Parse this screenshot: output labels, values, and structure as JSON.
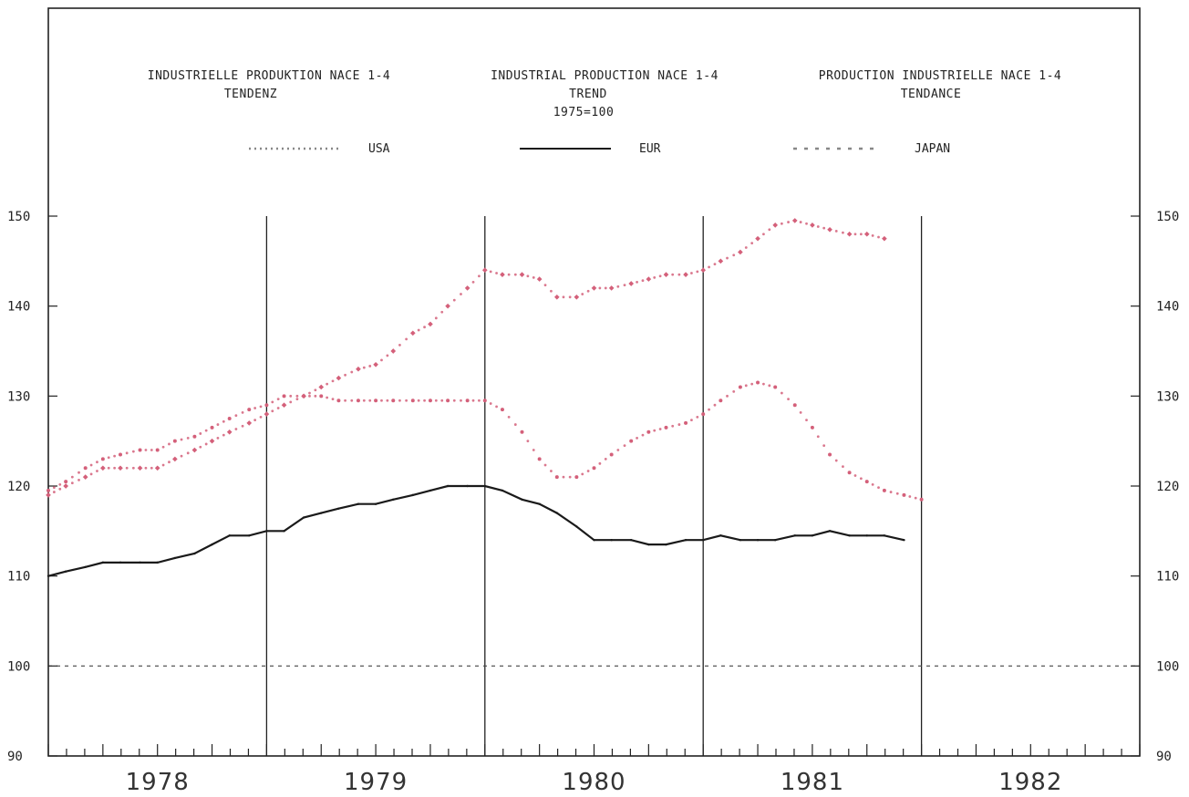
{
  "chart_data": {
    "type": "line",
    "titles": {
      "de": [
        "INDUSTRIELLE PRODUKTION NACE 1-4",
        "TENDENZ"
      ],
      "en": [
        "INDUSTRIAL PRODUCTION NACE 1-4",
        "TREND",
        "1975=100"
      ],
      "fr": [
        "PRODUCTION INDUSTRIELLE NACE 1-4",
        "TENDANCE"
      ]
    },
    "x_tick_labels": [
      "1978",
      "1979",
      "1980",
      "1981",
      "1982"
    ],
    "xlim": [
      1978.0,
      1983.0
    ],
    "ylim": [
      90,
      150
    ],
    "y_ticks": [
      90,
      100,
      110,
      120,
      130,
      140,
      150
    ],
    "grid": false,
    "legend_position": "top",
    "reference_line": 100,
    "series": [
      {
        "name": "USA",
        "style": "starred",
        "color": "#d4607a",
        "points": [
          [
            1978.0,
            119.0
          ],
          [
            1978.08,
            120.0
          ],
          [
            1978.17,
            121.0
          ],
          [
            1978.25,
            122.0
          ],
          [
            1978.33,
            122.0
          ],
          [
            1978.42,
            122.0
          ],
          [
            1978.5,
            122.0
          ],
          [
            1978.58,
            123.0
          ],
          [
            1978.67,
            124.0
          ],
          [
            1978.75,
            125.0
          ],
          [
            1978.83,
            126.0
          ],
          [
            1978.92,
            127.0
          ],
          [
            1979.0,
            128.0
          ],
          [
            1979.08,
            129.0
          ],
          [
            1979.17,
            130.0
          ],
          [
            1979.25,
            131.0
          ],
          [
            1979.33,
            132.0
          ],
          [
            1979.42,
            133.0
          ],
          [
            1979.5,
            133.5
          ],
          [
            1979.58,
            135.0
          ],
          [
            1979.67,
            137.0
          ],
          [
            1979.75,
            138.0
          ],
          [
            1979.83,
            140.0
          ],
          [
            1979.92,
            142.0
          ],
          [
            1980.0,
            144.0
          ],
          [
            1980.08,
            143.5
          ],
          [
            1980.17,
            143.5
          ],
          [
            1980.25,
            143.0
          ],
          [
            1980.33,
            141.0
          ],
          [
            1980.42,
            141.0
          ],
          [
            1980.5,
            142.0
          ],
          [
            1980.58,
            142.0
          ],
          [
            1980.67,
            142.5
          ],
          [
            1980.75,
            143.0
          ],
          [
            1980.83,
            143.5
          ],
          [
            1980.92,
            143.5
          ],
          [
            1981.0,
            144.0
          ],
          [
            1981.08,
            145.0
          ],
          [
            1981.17,
            146.0
          ],
          [
            1981.25,
            147.5
          ],
          [
            1981.33,
            149.0
          ],
          [
            1981.42,
            149.5
          ],
          [
            1981.5,
            149.0
          ],
          [
            1981.58,
            148.5
          ],
          [
            1981.67,
            148.0
          ],
          [
            1981.75,
            148.0
          ],
          [
            1981.83,
            147.5
          ]
        ]
      },
      {
        "name": "EUR",
        "style": "solid",
        "color": "#1a1a1a",
        "points": [
          [
            1978.0,
            110.0
          ],
          [
            1978.08,
            110.5
          ],
          [
            1978.17,
            111.0
          ],
          [
            1978.25,
            111.5
          ],
          [
            1978.33,
            111.5
          ],
          [
            1978.42,
            111.5
          ],
          [
            1978.5,
            111.5
          ],
          [
            1978.58,
            112.0
          ],
          [
            1978.67,
            112.5
          ],
          [
            1978.75,
            113.5
          ],
          [
            1978.83,
            114.5
          ],
          [
            1978.92,
            114.5
          ],
          [
            1979.0,
            115.0
          ],
          [
            1979.08,
            115.0
          ],
          [
            1979.17,
            116.5
          ],
          [
            1979.25,
            117.0
          ],
          [
            1979.33,
            117.5
          ],
          [
            1979.42,
            118.0
          ],
          [
            1979.5,
            118.0
          ],
          [
            1979.58,
            118.5
          ],
          [
            1979.67,
            119.0
          ],
          [
            1979.75,
            119.5
          ],
          [
            1979.83,
            120.0
          ],
          [
            1979.92,
            120.0
          ],
          [
            1980.0,
            120.0
          ],
          [
            1980.08,
            119.5
          ],
          [
            1980.17,
            118.5
          ],
          [
            1980.25,
            118.0
          ],
          [
            1980.33,
            117.0
          ],
          [
            1980.42,
            115.5
          ],
          [
            1980.5,
            114.0
          ],
          [
            1980.58,
            114.0
          ],
          [
            1980.67,
            114.0
          ],
          [
            1980.75,
            113.5
          ],
          [
            1980.83,
            113.5
          ],
          [
            1980.92,
            114.0
          ],
          [
            1981.0,
            114.0
          ],
          [
            1981.08,
            114.5
          ],
          [
            1981.17,
            114.0
          ],
          [
            1981.25,
            114.0
          ],
          [
            1981.33,
            114.0
          ],
          [
            1981.42,
            114.5
          ],
          [
            1981.5,
            114.5
          ],
          [
            1981.58,
            115.0
          ],
          [
            1981.67,
            114.5
          ],
          [
            1981.75,
            114.5
          ],
          [
            1981.83,
            114.5
          ],
          [
            1981.92,
            114.0
          ]
        ]
      },
      {
        "name": "JAPAN",
        "style": "dotted",
        "color": "#d4607a",
        "points": [
          [
            1978.0,
            119.5
          ],
          [
            1978.08,
            120.5
          ],
          [
            1978.17,
            122.0
          ],
          [
            1978.25,
            123.0
          ],
          [
            1978.33,
            123.5
          ],
          [
            1978.42,
            124.0
          ],
          [
            1978.5,
            124.0
          ],
          [
            1978.58,
            125.0
          ],
          [
            1978.67,
            125.5
          ],
          [
            1978.75,
            126.5
          ],
          [
            1978.83,
            127.5
          ],
          [
            1978.92,
            128.5
          ],
          [
            1979.0,
            129.0
          ],
          [
            1979.08,
            130.0
          ],
          [
            1979.17,
            130.0
          ],
          [
            1979.25,
            130.0
          ],
          [
            1979.33,
            129.5
          ],
          [
            1979.42,
            129.5
          ],
          [
            1979.5,
            129.5
          ],
          [
            1979.58,
            129.5
          ],
          [
            1979.67,
            129.5
          ],
          [
            1979.75,
            129.5
          ],
          [
            1979.83,
            129.5
          ],
          [
            1979.92,
            129.5
          ],
          [
            1980.0,
            129.5
          ],
          [
            1980.08,
            128.5
          ],
          [
            1980.17,
            126.0
          ],
          [
            1980.25,
            123.0
          ],
          [
            1980.33,
            121.0
          ],
          [
            1980.42,
            121.0
          ],
          [
            1980.5,
            122.0
          ],
          [
            1980.58,
            123.5
          ],
          [
            1980.67,
            125.0
          ],
          [
            1980.75,
            126.0
          ],
          [
            1980.83,
            126.5
          ],
          [
            1980.92,
            127.0
          ],
          [
            1981.0,
            128.0
          ],
          [
            1981.08,
            129.5
          ],
          [
            1981.17,
            131.0
          ],
          [
            1981.25,
            131.5
          ],
          [
            1981.33,
            131.0
          ],
          [
            1981.42,
            129.0
          ],
          [
            1981.5,
            126.5
          ],
          [
            1981.58,
            123.5
          ],
          [
            1981.67,
            121.5
          ],
          [
            1981.75,
            120.5
          ],
          [
            1981.83,
            119.5
          ],
          [
            1981.92,
            119.0
          ],
          [
            1982.0,
            118.5
          ]
        ]
      }
    ]
  }
}
